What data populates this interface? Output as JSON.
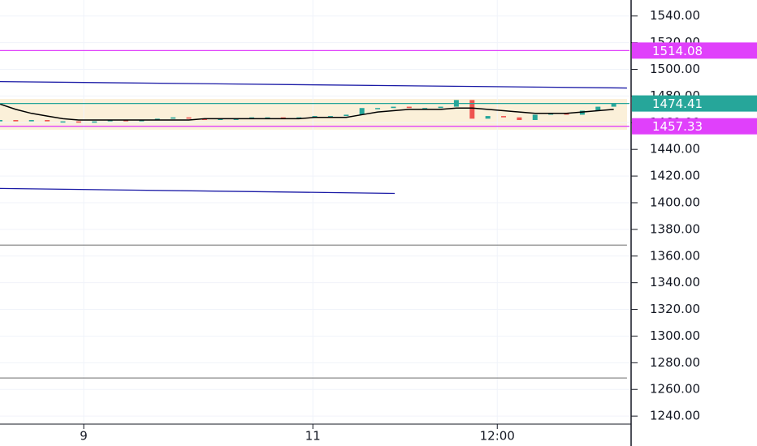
{
  "chart_data": {
    "type": "candlestick",
    "xlim": [
      0,
      100
    ],
    "xticks": [
      {
        "value": 13.3,
        "label": "9"
      },
      {
        "value": 49.7,
        "label": "11"
      },
      {
        "value": 79,
        "label": "12:00"
      }
    ],
    "ylim": [
      1234,
      1552
    ],
    "yticks": [
      {
        "value": 1240,
        "label": "1240.00"
      },
      {
        "value": 1260,
        "label": "1260.00"
      },
      {
        "value": 1280,
        "label": "1280.00"
      },
      {
        "value": 1300,
        "label": "1300.00"
      },
      {
        "value": 1320,
        "label": "1320.00"
      },
      {
        "value": 1340,
        "label": "1340.00"
      },
      {
        "value": 1360,
        "label": "1360.00"
      },
      {
        "value": 1380,
        "label": "1380.00"
      },
      {
        "value": 1400,
        "label": "1400.00"
      },
      {
        "value": 1420,
        "label": "1420.00"
      },
      {
        "value": 1440,
        "label": "1440.00"
      },
      {
        "value": 1460,
        "label": "1460.00"
      },
      {
        "value": 1480,
        "label": "1480.00"
      },
      {
        "value": 1500,
        "label": "1500.00"
      },
      {
        "value": 1520,
        "label": "1520.00"
      },
      {
        "value": 1540,
        "label": "1540.00"
      }
    ],
    "grid": true,
    "candles": {
      "x": [
        0,
        2.5,
        5,
        7.5,
        10,
        12.5,
        15,
        17.5,
        20,
        22.5,
        25,
        27.5,
        30,
        32.5,
        35,
        37.5,
        40,
        42.5,
        45,
        47.5,
        50,
        52.5,
        55,
        57.5,
        60,
        62.5,
        65,
        67.5,
        70,
        72.5,
        75,
        77.5,
        80,
        82.5,
        85,
        87.5,
        90,
        92.5,
        95,
        97.5
      ],
      "open": [
        1461,
        1462,
        1461,
        1462,
        1461,
        1461,
        1460,
        1461,
        1462,
        1461,
        1462,
        1463,
        1464,
        1463,
        1462,
        1463,
        1463,
        1464,
        1464,
        1463,
        1464,
        1465,
        1465,
        1466,
        1471,
        1471,
        1472,
        1471,
        1471,
        1472,
        1477,
        1463,
        1465,
        1464,
        1462,
        1466,
        1467,
        1466,
        1469,
        1472
      ],
      "close": [
        1462,
        1461,
        1462,
        1461,
        1461,
        1460,
        1461,
        1462,
        1461,
        1462,
        1463,
        1464,
        1463,
        1462,
        1463,
        1463,
        1464,
        1464,
        1463,
        1464,
        1465,
        1465,
        1466,
        1471,
        1471,
        1472,
        1471,
        1471,
        1472,
        1477,
        1463,
        1465,
        1464,
        1462,
        1466,
        1467,
        1466,
        1469,
        1472,
        1474.41
      ],
      "up_color": "#26a69a",
      "down_color": "#ef5350"
    },
    "moving_average": {
      "color": "#000000",
      "values": [
        1474,
        1470,
        1467,
        1465,
        1463,
        1462,
        1462,
        1462,
        1462,
        1462,
        1462,
        1462,
        1462,
        1463,
        1463,
        1463,
        1463,
        1463,
        1463,
        1463,
        1464,
        1464,
        1464,
        1466,
        1468,
        1469,
        1470,
        1470,
        1470,
        1471,
        1471,
        1470,
        1469,
        1468,
        1467,
        1467,
        1467,
        1468,
        1469,
        1470
      ]
    },
    "trendlines": [
      {
        "color": "#1a1aa6",
        "x": [
          0,
          99.6
        ],
        "values": [
          1490.8,
          1486
        ]
      },
      {
        "color": "#1a1aa6",
        "x": [
          0,
          62.7
        ],
        "values": [
          1410.7,
          1407
        ]
      },
      {
        "color": "#888888",
        "x": [
          0,
          99.6
        ],
        "values": [
          1368.2,
          1368.2
        ]
      },
      {
        "color": "#888888",
        "x": [
          0,
          99.6
        ],
        "values": [
          1268.6,
          1268.6
        ]
      }
    ],
    "price_lines": [
      {
        "value": 1514.08,
        "color": "#e040fb"
      },
      {
        "value": 1474.41,
        "color": "#26a69a"
      },
      {
        "value": 1457.33,
        "color": "#e040fb"
      }
    ]
  }
}
